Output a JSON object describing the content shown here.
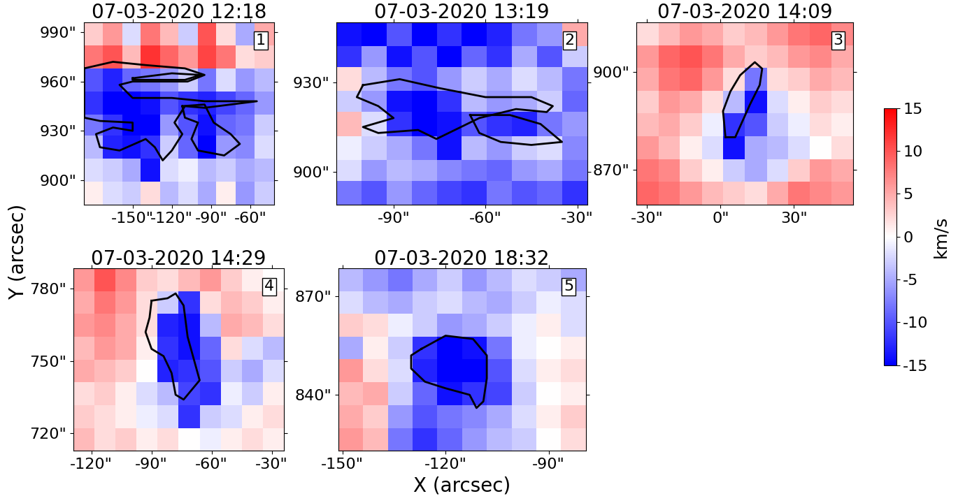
{
  "figure": {
    "x_label": "X (arcsec)",
    "y_label": "Y (arcsec)",
    "colorbar": {
      "label": "km/s",
      "range": [
        -15,
        15
      ],
      "ticks": [
        -15,
        -10,
        -5,
        0,
        5,
        10,
        15
      ]
    }
  },
  "chart_data": [
    {
      "type": "heatmap",
      "title": "07-03-2020 12:18",
      "panel_label": "1",
      "xlim": [
        -187.5,
        -41.8
      ],
      "ylim": [
        885,
        996
      ],
      "xticks": [
        {
          "value": -150,
          "label": "-150\""
        },
        {
          "value": -120,
          "label": "-120\""
        },
        {
          "value": -90,
          "label": "-90\""
        },
        {
          "value": -60,
          "label": "-60\""
        }
      ],
      "yticks": [
        {
          "value": 900,
          "label": "900\""
        },
        {
          "value": 930,
          "label": "930\""
        },
        {
          "value": 960,
          "label": "960\""
        },
        {
          "value": 990,
          "label": "990\""
        }
      ],
      "x_edges": [
        -187.5,
        -173,
        -158,
        -144,
        -129,
        -115,
        -100,
        -86,
        -71,
        -57,
        -41.8
      ],
      "y_edges": [
        996,
        982,
        968,
        954,
        940,
        927,
        913,
        899,
        885
      ],
      "cells": [
        [
          3,
          6,
          -2,
          8,
          4,
          -3,
          10,
          2,
          -5,
          5
        ],
        [
          8,
          10,
          4,
          12,
          9,
          6,
          11,
          8,
          2,
          3
        ],
        [
          -10,
          -13,
          -9,
          -8,
          -6,
          -3,
          -8,
          -2,
          -6,
          -4
        ],
        [
          -12,
          -15,
          -15,
          -14,
          -10,
          -12,
          -13,
          -11,
          -9,
          -6
        ],
        [
          -8,
          -12,
          -15,
          -15,
          -6,
          -10,
          -14,
          -9,
          -8,
          -3
        ],
        [
          -4,
          -13,
          -14,
          -12,
          -3,
          -9,
          -15,
          -6,
          -7,
          -2
        ],
        [
          -2,
          -3,
          -5,
          -14,
          -2,
          -1,
          -4,
          -3,
          -5,
          -4
        ],
        [
          1,
          -2,
          -3,
          2,
          -4,
          -2,
          -5,
          1,
          -6,
          -3
        ]
      ],
      "contours": [
        [
          [
            -187,
            968
          ],
          [
            -165,
            972
          ],
          [
            -140,
            970
          ],
          [
            -110,
            968
          ],
          [
            -95,
            964
          ],
          [
            -108,
            960
          ],
          [
            -150,
            960
          ],
          [
            -160,
            958
          ],
          [
            -150,
            950
          ],
          [
            -120,
            950
          ],
          [
            -95,
            948
          ],
          [
            -55,
            948
          ],
          [
            -95,
            944
          ],
          [
            -110,
            945
          ],
          [
            -118,
            935
          ],
          [
            -112,
            928
          ],
          [
            -120,
            918
          ],
          [
            -127,
            912
          ],
          [
            -133,
            920
          ],
          [
            -140,
            925
          ],
          [
            -160,
            918
          ],
          [
            -175,
            920
          ],
          [
            -178,
            928
          ],
          [
            -165,
            932
          ],
          [
            -150,
            930
          ],
          [
            -150,
            935
          ],
          [
            -175,
            936
          ],
          [
            -187,
            938
          ]
        ],
        [
          [
            -112,
            945
          ],
          [
            -95,
            946
          ],
          [
            -88,
            935
          ],
          [
            -75,
            928
          ],
          [
            -68,
            922
          ],
          [
            -80,
            915
          ],
          [
            -100,
            918
          ],
          [
            -105,
            925
          ],
          [
            -100,
            935
          ],
          [
            -110,
            938
          ]
        ],
        [
          [
            -150,
            962
          ],
          [
            -120,
            965
          ],
          [
            -98,
            964
          ],
          [
            -110,
            961
          ],
          [
            -150,
            961
          ]
        ]
      ]
    },
    {
      "type": "heatmap",
      "title": "07-03-2020 13:19",
      "panel_label": "2",
      "xlim": [
        -108.7,
        -26.8
      ],
      "ylim": [
        889,
        950
      ],
      "xticks": [
        {
          "value": -90,
          "label": "-90\""
        },
        {
          "value": -60,
          "label": "-60\""
        },
        {
          "value": -30,
          "label": "-30\""
        }
      ],
      "yticks": [
        {
          "value": 900,
          "label": "900\""
        },
        {
          "value": 930,
          "label": "930\""
        }
      ],
      "x_edges": [
        -108.7,
        -100.5,
        -92.3,
        -84.1,
        -75.9,
        -67.8,
        -59.6,
        -51.4,
        -43.2,
        -35,
        -26.8
      ],
      "y_edges": [
        950,
        942,
        935,
        927,
        920,
        912,
        904,
        897,
        889
      ],
      "cells": [
        [
          -14,
          -15,
          -10,
          -15,
          -12,
          -15,
          -13,
          -8,
          -6,
          5
        ],
        [
          -12,
          -6,
          -14,
          -10,
          -15,
          -9,
          -12,
          -5,
          -10,
          -3
        ],
        [
          2,
          -4,
          -8,
          -10,
          -6,
          -3,
          -5,
          -2,
          -4,
          -8
        ],
        [
          -3,
          -6,
          -14,
          -15,
          -12,
          -4,
          -6,
          -5,
          -3,
          -9
        ],
        [
          4,
          -2,
          -12,
          -15,
          -14,
          -10,
          -12,
          -13,
          -8,
          -6
        ],
        [
          -1,
          -3,
          -5,
          -8,
          -14,
          -4,
          -6,
          -3,
          -2,
          -7
        ],
        [
          -2,
          -6,
          -4,
          -5,
          -7,
          -8,
          -9,
          -6,
          -5,
          -8
        ],
        [
          -8,
          -10,
          -6,
          -9,
          -11,
          -12,
          -8,
          -10,
          -9,
          -12
        ]
      ],
      "contours": [
        [
          [
            -100,
            929
          ],
          [
            -88,
            931
          ],
          [
            -75,
            928
          ],
          [
            -60,
            925
          ],
          [
            -45,
            925
          ],
          [
            -38,
            922
          ],
          [
            -40,
            920
          ],
          [
            -50,
            921
          ],
          [
            -62,
            918
          ],
          [
            -70,
            914
          ],
          [
            -76,
            911
          ],
          [
            -82,
            914
          ],
          [
            -95,
            913
          ],
          [
            -100,
            915
          ],
          [
            -90,
            918
          ],
          [
            -95,
            922
          ],
          [
            -102,
            925
          ]
        ],
        [
          [
            -65,
            919
          ],
          [
            -52,
            919
          ],
          [
            -42,
            916
          ],
          [
            -35,
            910
          ],
          [
            -45,
            909
          ],
          [
            -55,
            910
          ],
          [
            -62,
            913
          ]
        ]
      ]
    },
    {
      "type": "heatmap",
      "title": "07-03-2020 14:09",
      "panel_label": "3",
      "xlim": [
        -34.3,
        54.3
      ],
      "ylim": [
        859.3,
        915.2
      ],
      "xticks": [
        {
          "value": -30,
          "label": "-30\""
        },
        {
          "value": 0,
          "label": "0\""
        },
        {
          "value": 30,
          "label": "30\""
        }
      ],
      "yticks": [
        {
          "value": 870,
          "label": "870\""
        },
        {
          "value": 900,
          "label": "900\""
        }
      ],
      "x_edges": [
        -34.3,
        -25.4,
        -16.6,
        -7.7,
        1.1,
        10,
        18.9,
        27.7,
        36.6,
        45.4,
        54.3
      ],
      "y_edges": [
        915.2,
        908.2,
        901.2,
        894.2,
        887.3,
        880.3,
        873.3,
        866.3,
        859.3
      ],
      "cells": [
        [
          2,
          4,
          6,
          5,
          3,
          4,
          6,
          8,
          9,
          7
        ],
        [
          6,
          9,
          10,
          8,
          5,
          3,
          4,
          6,
          7,
          5
        ],
        [
          5,
          8,
          9,
          6,
          2,
          -8,
          2,
          3,
          5,
          4
        ],
        [
          3,
          6,
          5,
          2,
          -4,
          -14,
          -2,
          1,
          3,
          2
        ],
        [
          4,
          5,
          3,
          -1,
          -12,
          -10,
          -3,
          -1,
          2,
          1
        ],
        [
          6,
          4,
          1,
          -2,
          -14,
          -5,
          -4,
          -2,
          0,
          2
        ],
        [
          8,
          7,
          3,
          1,
          -3,
          -5,
          -2,
          3,
          6,
          5
        ],
        [
          9,
          8,
          6,
          4,
          3,
          2,
          5,
          8,
          7,
          6
        ]
      ],
      "contours": [
        [
          [
            2,
            880
          ],
          [
            6,
            880
          ],
          [
            9,
            885
          ],
          [
            12,
            890
          ],
          [
            16,
            896
          ],
          [
            17,
            901
          ],
          [
            14,
            903
          ],
          [
            8,
            899
          ],
          [
            4,
            894
          ],
          [
            1,
            888
          ]
        ]
      ]
    },
    {
      "type": "heatmap",
      "title": "07-03-2020 14:29",
      "panel_label": "4",
      "xlim": [
        -129,
        -24
      ],
      "ylim": [
        712.8,
        788.4
      ],
      "xticks": [
        {
          "value": -120,
          "label": "-120\""
        },
        {
          "value": -90,
          "label": "-90\""
        },
        {
          "value": -60,
          "label": "-60\""
        },
        {
          "value": -30,
          "label": "-30\""
        }
      ],
      "yticks": [
        {
          "value": 720,
          "label": "720\""
        },
        {
          "value": 750,
          "label": "750\""
        },
        {
          "value": 780,
          "label": "780\""
        }
      ],
      "x_edges": [
        -129,
        -118.5,
        -108,
        -97.5,
        -87,
        -76.5,
        -66,
        -55.5,
        -45,
        -34.5,
        -24
      ],
      "y_edges": [
        788.4,
        779,
        769.5,
        760.1,
        750.6,
        741.1,
        731.7,
        722.2,
        712.8
      ],
      "cells": [
        [
          6,
          10,
          7,
          3,
          2,
          4,
          6,
          3,
          1,
          0
        ],
        [
          5,
          8,
          6,
          2,
          -3,
          -12,
          2,
          4,
          3,
          1
        ],
        [
          6,
          7,
          5,
          2,
          -13,
          -14,
          -4,
          5,
          4,
          2
        ],
        [
          4,
          6,
          5,
          1,
          -12,
          -14,
          -9,
          2,
          -2,
          -4
        ],
        [
          5,
          4,
          3,
          0,
          -13,
          -12,
          -10,
          -3,
          -5,
          -2
        ],
        [
          2,
          3,
          1,
          -2,
          -4,
          -11,
          -12,
          -1,
          -3,
          1
        ],
        [
          3,
          2,
          1,
          -1,
          -2,
          -12,
          -3,
          -2,
          1,
          2
        ],
        [
          4,
          2,
          3,
          1,
          2,
          0,
          -1,
          1,
          2,
          1
        ]
      ],
      "contours": [
        [
          [
            -90,
            775
          ],
          [
            -82,
            776
          ],
          [
            -78,
            778
          ],
          [
            -74,
            773
          ],
          [
            -72,
            760
          ],
          [
            -68,
            748
          ],
          [
            -66,
            742
          ],
          [
            -70,
            738
          ],
          [
            -74,
            734
          ],
          [
            -78,
            736
          ],
          [
            -80,
            745
          ],
          [
            -84,
            752
          ],
          [
            -90,
            755
          ],
          [
            -93,
            762
          ],
          [
            -91,
            768
          ]
        ]
      ]
    },
    {
      "type": "heatmap",
      "title": "07-03-2020 18:32",
      "panel_label": "5",
      "xlim": [
        -151.2,
        -79.2
      ],
      "ylim": [
        823,
        878.5
      ],
      "xticks": [
        {
          "value": -150,
          "label": "-150\""
        },
        {
          "value": -120,
          "label": "-120\""
        },
        {
          "value": -90,
          "label": "-90\""
        }
      ],
      "yticks": [
        {
          "value": 840,
          "label": "840\""
        },
        {
          "value": 870,
          "label": "870\""
        }
      ],
      "x_edges": [
        -151.2,
        -144,
        -136.8,
        -129.6,
        -122.4,
        -115.2,
        -108,
        -100.8,
        -93.6,
        -86.4,
        -79.2
      ],
      "y_edges": [
        878.5,
        871.6,
        864.6,
        857.7,
        850.8,
        843.8,
        836.9,
        829.9,
        823
      ],
      "cells": [
        [
          -4,
          -6,
          -8,
          -5,
          -3,
          -6,
          -4,
          -2,
          -3,
          -5
        ],
        [
          -2,
          -4,
          -5,
          -3,
          -2,
          -4,
          -5,
          -3,
          -1,
          -2
        ],
        [
          3,
          2,
          -1,
          -3,
          -6,
          -5,
          -3,
          -1,
          1,
          -2
        ],
        [
          -5,
          1,
          -3,
          -12,
          -15,
          -14,
          -8,
          -1,
          0,
          1
        ],
        [
          6,
          2,
          -2,
          -13,
          -15,
          -15,
          -10,
          -2,
          1,
          2
        ],
        [
          4,
          5,
          -3,
          -9,
          -14,
          -12,
          -11,
          -3,
          0,
          1
        ],
        [
          5,
          3,
          -6,
          -10,
          -8,
          -7,
          -5,
          -2,
          1,
          3
        ],
        [
          6,
          4,
          -8,
          -12,
          -9,
          -6,
          -4,
          -3,
          0,
          2
        ]
      ],
      "contours": [
        [
          [
            -127,
            854
          ],
          [
            -120,
            858
          ],
          [
            -112,
            857
          ],
          [
            -108,
            852
          ],
          [
            -108,
            845
          ],
          [
            -109,
            838
          ],
          [
            -111,
            836
          ],
          [
            -113,
            840
          ],
          [
            -120,
            842
          ],
          [
            -126,
            844
          ],
          [
            -130,
            848
          ],
          [
            -130,
            852
          ]
        ]
      ]
    }
  ]
}
